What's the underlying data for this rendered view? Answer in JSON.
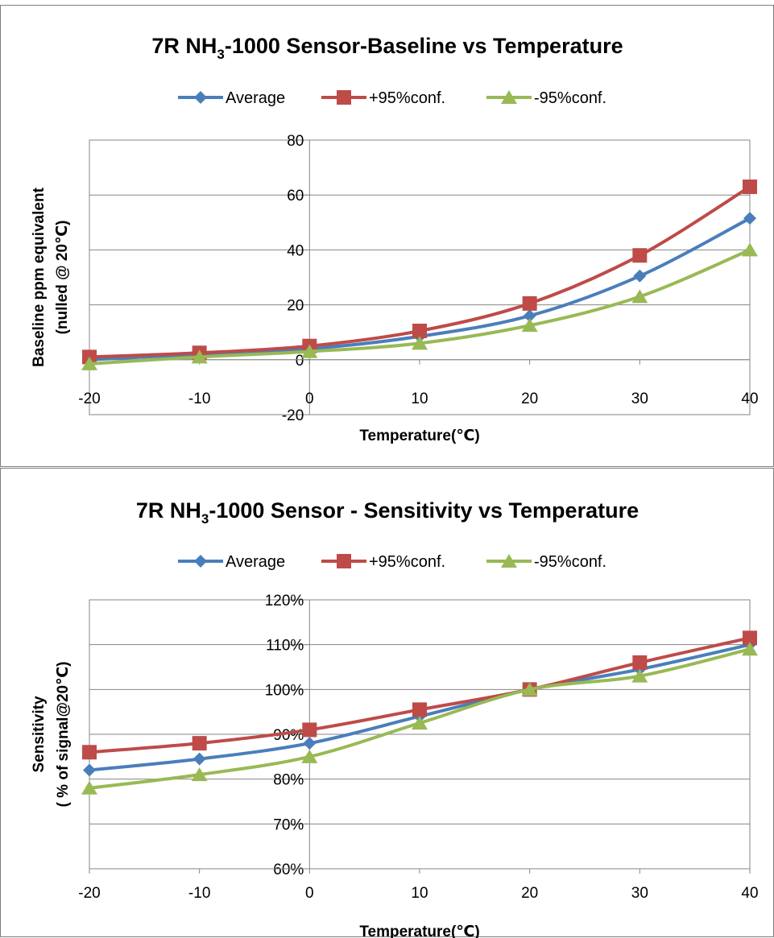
{
  "chart_data": [
    {
      "type": "line",
      "title_parts": [
        "7R NH",
        "3",
        "-1000 Sensor-Baseline vs Temperature"
      ],
      "xlabel": "Temperature(℃)",
      "ylabel_lines": [
        "Baseline ppm equivalent",
        "(nulled @ 20℃)"
      ],
      "x": [
        -20,
        -10,
        0,
        10,
        20,
        30,
        40
      ],
      "xlim": [
        -20,
        40
      ],
      "ylim": [
        -20,
        80
      ],
      "yticks": [
        -20,
        0,
        20,
        40,
        60,
        80
      ],
      "ytick_labels": [
        "-20",
        "0",
        "20",
        "40",
        "60",
        "80"
      ],
      "xtick_labels": [
        "-20",
        "-10",
        "0",
        "10",
        "20",
        "30",
        "40"
      ],
      "grid": true,
      "legend_position": "top",
      "series": [
        {
          "name": "Average",
          "color": "#4a7ebb",
          "marker": "diamond",
          "values": [
            0,
            2,
            4,
            8.5,
            16,
            30.5,
            51.5
          ]
        },
        {
          "name": "+95%conf.",
          "color": "#be4b48",
          "marker": "square",
          "values": [
            1,
            2.5,
            5,
            10.5,
            20.5,
            38,
            63
          ]
        },
        {
          "name": "-95%conf.",
          "color": "#98b954",
          "marker": "triangle",
          "values": [
            -1.5,
            1,
            3,
            6,
            12.5,
            23,
            40
          ]
        }
      ]
    },
    {
      "type": "line",
      "title_parts": [
        "7R NH",
        "3",
        "-1000 Sensor - Sensitivity vs Temperature"
      ],
      "xlabel": "Temperature(℃)",
      "ylabel_lines": [
        "Sensitivity",
        "( % of signal@20℃)"
      ],
      "x": [
        -20,
        -10,
        0,
        10,
        20,
        30,
        40
      ],
      "xlim": [
        -20,
        40
      ],
      "ylim": [
        60,
        120
      ],
      "yticks": [
        60,
        70,
        80,
        90,
        100,
        110,
        120
      ],
      "ytick_labels": [
        "60%",
        "70%",
        "80%",
        "90%",
        "100%",
        "110%",
        "120%"
      ],
      "xtick_labels": [
        "-20",
        "-10",
        "0",
        "10",
        "20",
        "30",
        "40"
      ],
      "grid": true,
      "legend_position": "top",
      "series": [
        {
          "name": "Average",
          "color": "#4a7ebb",
          "marker": "diamond",
          "values": [
            82,
            84.5,
            88,
            94,
            100,
            104.5,
            110
          ]
        },
        {
          "name": "+95%conf.",
          "color": "#be4b48",
          "marker": "square",
          "values": [
            86,
            88,
            91,
            95.5,
            100,
            106,
            111.5
          ]
        },
        {
          "name": "-95%conf.",
          "color": "#98b954",
          "marker": "triangle",
          "values": [
            78,
            81,
            85,
            92.5,
            100,
            103,
            109
          ]
        }
      ]
    }
  ]
}
